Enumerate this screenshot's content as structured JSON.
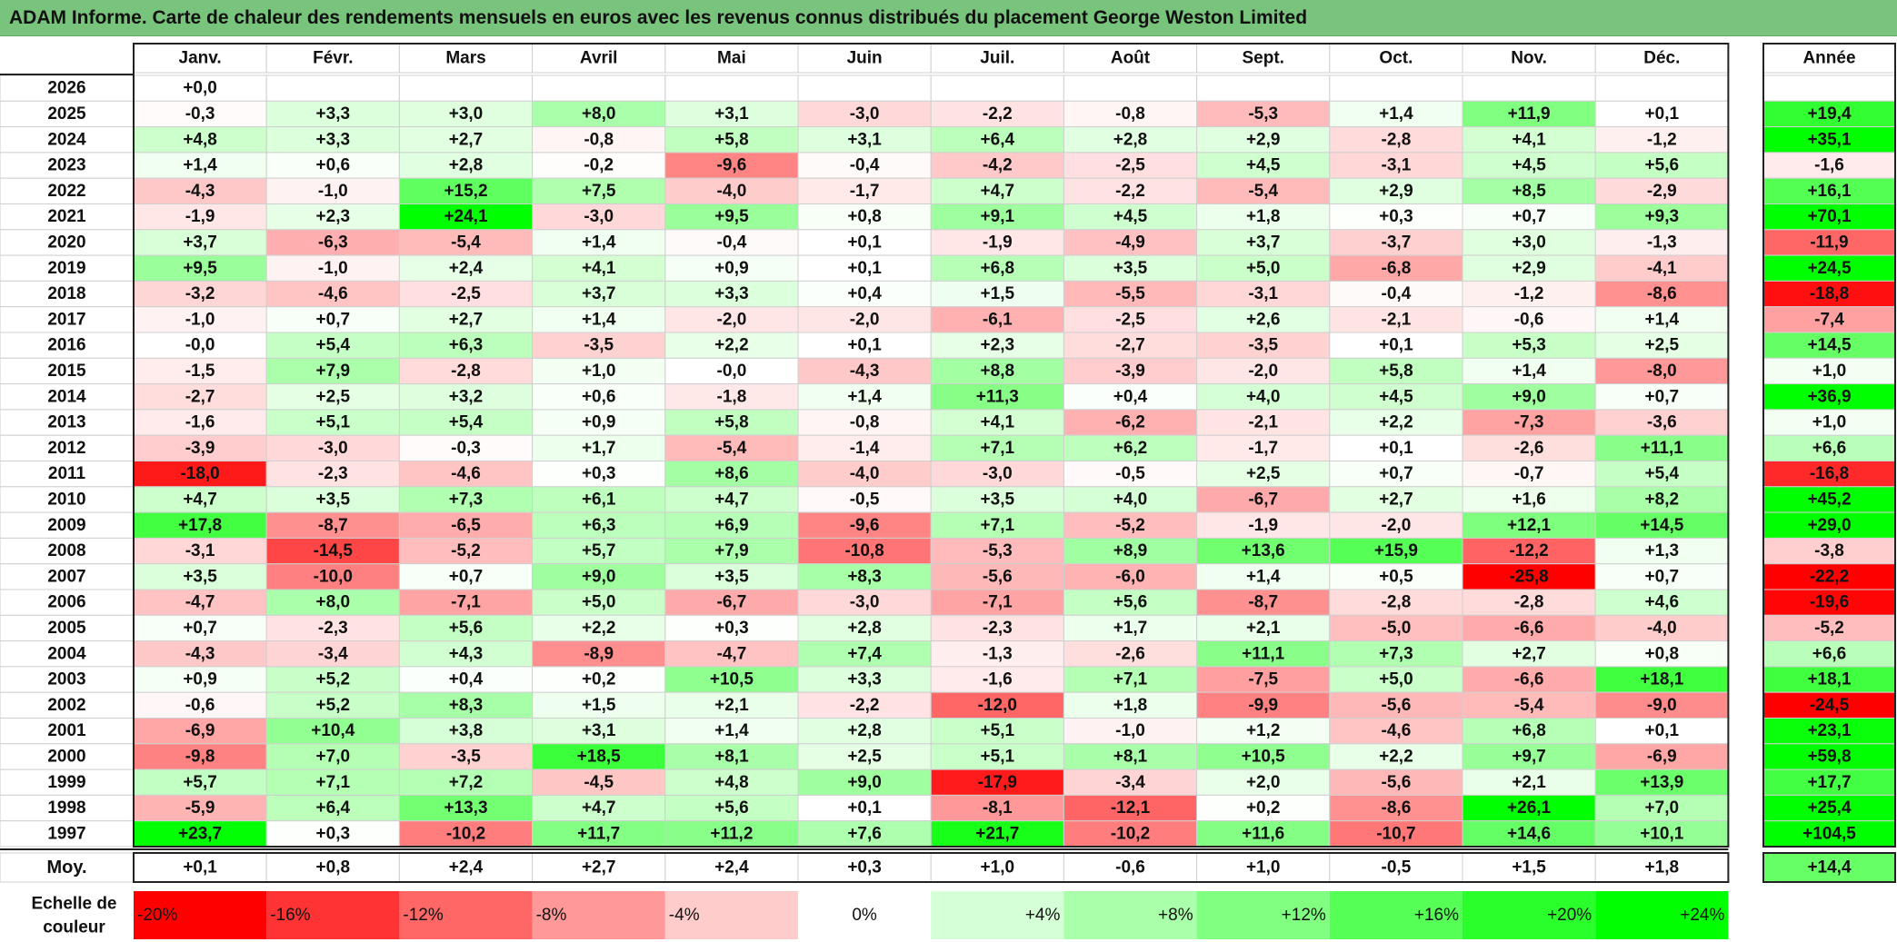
{
  "title": "ADAM Informe. Carte de chaleur des rendements mensuels en euros avec les revenus connus distribués du placement George Weston Limited",
  "colors": {
    "negative": "#ff0000",
    "neutral": "#ffffff",
    "positive": "#00ff00",
    "title_bar": "#79c47c"
  },
  "chart_data": {
    "type": "heatmap",
    "title": "ADAM Informe. Carte de chaleur des rendements mensuels en euros avec les revenus connus distribués du placement George Weston Limited",
    "months": [
      "Janv.",
      "Févr.",
      "Mars",
      "Avril",
      "Mai",
      "Juin",
      "Juil.",
      "Août",
      "Sept.",
      "Oct.",
      "Nov.",
      "Déc."
    ],
    "year_header": "Année",
    "rows": [
      {
        "year": "2026",
        "months": [
          "+0,0",
          "",
          "",
          "",
          "",
          "",
          "",
          "",
          "",
          "",
          "",
          ""
        ],
        "annual": ""
      },
      {
        "year": "2025",
        "months": [
          "-0,3",
          "+3,3",
          "+3,0",
          "+8,0",
          "+3,1",
          "-3,0",
          "-2,2",
          "-0,8",
          "-5,3",
          "+1,4",
          "+11,9",
          "+0,1"
        ],
        "annual": "+19,4"
      },
      {
        "year": "2024",
        "months": [
          "+4,8",
          "+3,3",
          "+2,7",
          "-0,8",
          "+5,8",
          "+3,1",
          "+6,4",
          "+2,8",
          "+2,9",
          "-2,8",
          "+4,1",
          "-1,2"
        ],
        "annual": "+35,1"
      },
      {
        "year": "2023",
        "months": [
          "+1,4",
          "+0,6",
          "+2,8",
          "-0,2",
          "-9,6",
          "-0,4",
          "-4,2",
          "-2,5",
          "+4,5",
          "-3,1",
          "+4,5",
          "+5,6"
        ],
        "annual": "-1,6"
      },
      {
        "year": "2022",
        "months": [
          "-4,3",
          "-1,0",
          "+15,2",
          "+7,5",
          "-4,0",
          "-1,7",
          "+4,7",
          "-2,2",
          "-5,4",
          "+2,9",
          "+8,5",
          "-2,9"
        ],
        "annual": "+16,1"
      },
      {
        "year": "2021",
        "months": [
          "-1,9",
          "+2,3",
          "+24,1",
          "-3,0",
          "+9,5",
          "+0,8",
          "+9,1",
          "+4,5",
          "+1,8",
          "+0,3",
          "+0,7",
          "+9,3"
        ],
        "annual": "+70,1"
      },
      {
        "year": "2020",
        "months": [
          "+3,7",
          "-6,3",
          "-5,4",
          "+1,4",
          "-0,4",
          "+0,1",
          "-1,9",
          "-4,9",
          "+3,7",
          "-3,7",
          "+3,0",
          "-1,3"
        ],
        "annual": "-11,9"
      },
      {
        "year": "2019",
        "months": [
          "+9,5",
          "-1,0",
          "+2,4",
          "+4,1",
          "+0,9",
          "+0,1",
          "+6,8",
          "+3,5",
          "+5,0",
          "-6,8",
          "+2,9",
          "-4,1"
        ],
        "annual": "+24,5"
      },
      {
        "year": "2018",
        "months": [
          "-3,2",
          "-4,6",
          "-2,5",
          "+3,7",
          "+3,3",
          "+0,4",
          "+1,5",
          "-5,5",
          "-3,1",
          "-0,4",
          "-1,2",
          "-8,6"
        ],
        "annual": "-18,8"
      },
      {
        "year": "2017",
        "months": [
          "-1,0",
          "+0,7",
          "+2,7",
          "+1,4",
          "-2,0",
          "-2,0",
          "-6,1",
          "-2,5",
          "+2,6",
          "-2,1",
          "-0,6",
          "+1,4"
        ],
        "annual": "-7,4"
      },
      {
        "year": "2016",
        "months": [
          "-0,0",
          "+5,4",
          "+6,3",
          "-3,5",
          "+2,2",
          "+0,1",
          "+2,3",
          "-2,7",
          "-3,5",
          "+0,1",
          "+5,3",
          "+2,5"
        ],
        "annual": "+14,5"
      },
      {
        "year": "2015",
        "months": [
          "-1,5",
          "+7,9",
          "-2,8",
          "+1,0",
          "-0,0",
          "-4,3",
          "+8,8",
          "-3,9",
          "-2,0",
          "+5,8",
          "+1,4",
          "-8,0"
        ],
        "annual": "+1,0"
      },
      {
        "year": "2014",
        "months": [
          "-2,7",
          "+2,5",
          "+3,2",
          "+0,6",
          "-1,8",
          "+1,4",
          "+11,3",
          "+0,4",
          "+4,0",
          "+4,5",
          "+9,0",
          "+0,7"
        ],
        "annual": "+36,9"
      },
      {
        "year": "2013",
        "months": [
          "-1,6",
          "+5,1",
          "+5,4",
          "+0,9",
          "+5,8",
          "-0,8",
          "+4,1",
          "-6,2",
          "-2,1",
          "+2,2",
          "-7,3",
          "-3,6"
        ],
        "annual": "+1,0"
      },
      {
        "year": "2012",
        "months": [
          "-3,9",
          "-3,0",
          "-0,3",
          "+1,7",
          "-5,4",
          "-1,4",
          "+7,1",
          "+6,2",
          "-1,7",
          "+0,1",
          "-2,6",
          "+11,1"
        ],
        "annual": "+6,6"
      },
      {
        "year": "2011",
        "months": [
          "-18,0",
          "-2,3",
          "-4,6",
          "+0,3",
          "+8,6",
          "-4,0",
          "-3,0",
          "-0,5",
          "+2,5",
          "+0,7",
          "-0,7",
          "+5,4"
        ],
        "annual": "-16,8"
      },
      {
        "year": "2010",
        "months": [
          "+4,7",
          "+3,5",
          "+7,3",
          "+6,1",
          "+4,7",
          "-0,5",
          "+3,5",
          "+4,0",
          "-6,7",
          "+2,7",
          "+1,6",
          "+8,2"
        ],
        "annual": "+45,2"
      },
      {
        "year": "2009",
        "months": [
          "+17,8",
          "-8,7",
          "-6,5",
          "+6,3",
          "+6,9",
          "-9,6",
          "+7,1",
          "-5,2",
          "-1,9",
          "-2,0",
          "+12,1",
          "+14,5"
        ],
        "annual": "+29,0"
      },
      {
        "year": "2008",
        "months": [
          "-3,1",
          "-14,5",
          "-5,2",
          "+5,7",
          "+7,9",
          "-10,8",
          "-5,3",
          "+8,9",
          "+13,6",
          "+15,9",
          "-12,2",
          "+1,3"
        ],
        "annual": "-3,8"
      },
      {
        "year": "2007",
        "months": [
          "+3,5",
          "-10,0",
          "+0,7",
          "+9,0",
          "+3,5",
          "+8,3",
          "-5,6",
          "-6,0",
          "+1,4",
          "+0,5",
          "-25,8",
          "+0,7"
        ],
        "annual": "-22,2"
      },
      {
        "year": "2006",
        "months": [
          "-4,7",
          "+8,0",
          "-7,1",
          "+5,0",
          "-6,7",
          "-3,0",
          "-7,1",
          "+5,6",
          "-8,7",
          "-2,8",
          "-2,8",
          "+4,6"
        ],
        "annual": "-19,6"
      },
      {
        "year": "2005",
        "months": [
          "+0,7",
          "-2,3",
          "+5,6",
          "+2,2",
          "+0,3",
          "+2,8",
          "-2,3",
          "+1,7",
          "+2,1",
          "-5,0",
          "-6,6",
          "-4,0"
        ],
        "annual": "-5,2"
      },
      {
        "year": "2004",
        "months": [
          "-4,3",
          "-3,4",
          "+4,3",
          "-8,9",
          "-4,7",
          "+7,4",
          "-1,3",
          "-2,6",
          "+11,1",
          "+7,3",
          "+2,7",
          "+0,8"
        ],
        "annual": "+6,6"
      },
      {
        "year": "2003",
        "months": [
          "+0,9",
          "+5,2",
          "+0,4",
          "+0,2",
          "+10,5",
          "+3,3",
          "-1,6",
          "+7,1",
          "-7,5",
          "+5,0",
          "-6,6",
          "+18,1"
        ],
        "annual": "+18,1"
      },
      {
        "year": "2002",
        "months": [
          "-0,6",
          "+5,2",
          "+8,3",
          "+1,5",
          "+2,1",
          "-2,2",
          "-12,0",
          "+1,8",
          "-9,9",
          "-5,6",
          "-5,4",
          "-9,0"
        ],
        "annual": "-24,5"
      },
      {
        "year": "2001",
        "months": [
          "-6,9",
          "+10,4",
          "+3,8",
          "+3,1",
          "+1,4",
          "+2,8",
          "+5,1",
          "-1,0",
          "+1,2",
          "-4,6",
          "+6,8",
          "+0,1"
        ],
        "annual": "+23,1"
      },
      {
        "year": "2000",
        "months": [
          "-9,8",
          "+7,0",
          "-3,5",
          "+18,5",
          "+8,1",
          "+2,5",
          "+5,1",
          "+8,1",
          "+10,5",
          "+2,2",
          "+9,7",
          "-6,9"
        ],
        "annual": "+59,8"
      },
      {
        "year": "1999",
        "months": [
          "+5,7",
          "+7,1",
          "+7,2",
          "-4,5",
          "+4,8",
          "+9,0",
          "-17,9",
          "-3,4",
          "+2,0",
          "-5,6",
          "+2,1",
          "+13,9"
        ],
        "annual": "+17,7"
      },
      {
        "year": "1998",
        "months": [
          "-5,9",
          "+6,4",
          "+13,3",
          "+4,7",
          "+5,6",
          "+0,1",
          "-8,1",
          "-12,1",
          "+0,2",
          "-8,6",
          "+26,1",
          "+7,0"
        ],
        "annual": "+25,4"
      },
      {
        "year": "1997",
        "months": [
          "+23,7",
          "+0,3",
          "-10,2",
          "+11,7",
          "+11,2",
          "+7,6",
          "+21,7",
          "-10,2",
          "+11,6",
          "-10,7",
          "+14,6",
          "+10,1"
        ],
        "annual": "+104,5"
      }
    ],
    "average": {
      "label": "Moy.",
      "months": [
        "+0,1",
        "+0,8",
        "+2,4",
        "+2,7",
        "+2,4",
        "+0,3",
        "+1,0",
        "-0,6",
        "+1,0",
        "-0,5",
        "+1,5",
        "+1,8"
      ],
      "annual": "+14,4"
    },
    "scale": {
      "label_line1": "Echelle de",
      "label_line2": "couleur",
      "steps": [
        "-20%",
        "-16%",
        "-12%",
        "-8%",
        "-4%",
        "0%",
        "+4%",
        "+8%",
        "+12%",
        "+16%",
        "+20%",
        "+24%"
      ],
      "values": [
        -20,
        -16,
        -12,
        -8,
        -4,
        0,
        4,
        8,
        12,
        16,
        20,
        24
      ]
    }
  }
}
